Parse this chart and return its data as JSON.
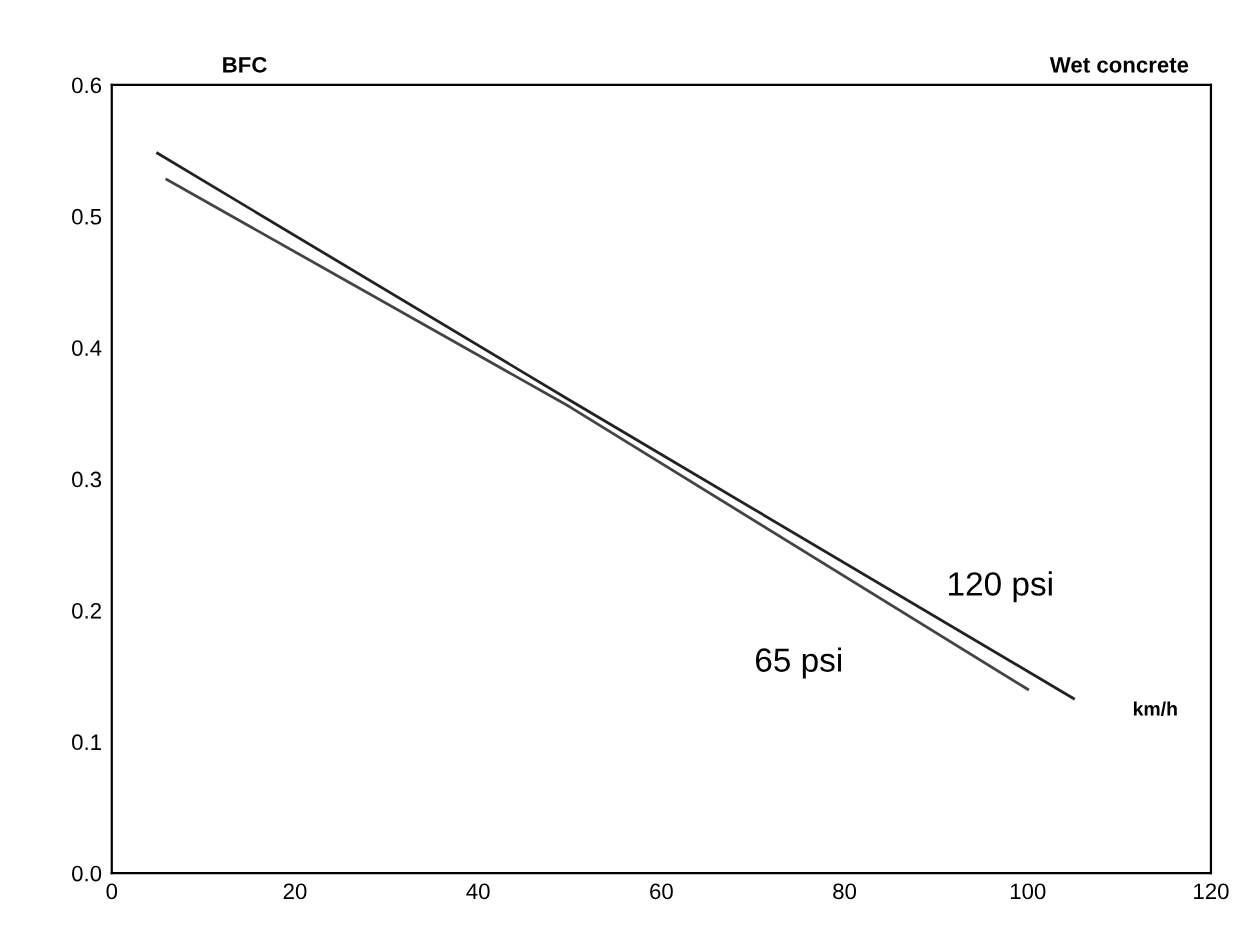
{
  "chart_data": {
    "type": "line",
    "title": "Wet concrete",
    "ylabel": "BFC",
    "xlabel": "km/h",
    "series": [
      {
        "name": "120 psi",
        "color": "#222222",
        "x": [
          5,
          50,
          105
        ],
        "values": [
          0.548,
          0.36,
          0.133
        ]
      },
      {
        "name": "65 psi",
        "color": "#444444",
        "x": [
          6,
          50,
          100
        ],
        "values": [
          0.528,
          0.355,
          0.14
        ]
      }
    ],
    "xlim": [
      0,
      120
    ],
    "ylim": [
      0,
      0.6
    ],
    "xticks": [
      0,
      20,
      40,
      60,
      80,
      100,
      120
    ],
    "yticks": [
      {
        "value": 0,
        "label": "0.0"
      },
      0.1,
      0.2,
      0.3,
      0.4,
      0.5,
      0.6
    ],
    "grid": false,
    "legend": false,
    "marker": "none",
    "line_style": "solid"
  }
}
